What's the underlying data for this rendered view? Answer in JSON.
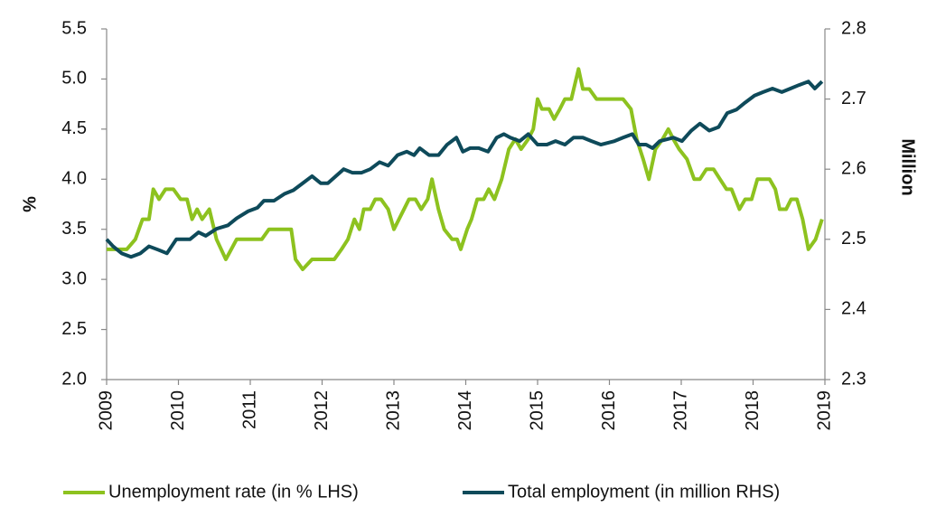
{
  "chart_data": {
    "type": "line",
    "y_label": "%",
    "y2_label": "Million",
    "xlim": [
      2009,
      2019
    ],
    "xticks": [
      2009,
      2010,
      2011,
      2012,
      2013,
      2014,
      2015,
      2016,
      2017,
      2018,
      2019
    ],
    "ylim": [
      2.0,
      5.5
    ],
    "yticks": [
      {
        "value": 2,
        "label": "2.0"
      },
      2.5,
      {
        "value": 3,
        "label": "3.0"
      },
      3.5,
      {
        "value": 4,
        "label": "4.0"
      },
      4.5,
      {
        "value": 5,
        "label": "5.0"
      },
      5.5
    ],
    "y2lim": [
      2.3,
      2.8
    ],
    "y2ticks": [
      2.3,
      2.4,
      2.5,
      2.6,
      2.7,
      2.8
    ],
    "legend": "bottom",
    "series": [
      {
        "name": "Unemployment rate (in % LHS)",
        "color": "#8dc21f",
        "x": [
          2009.0,
          2009.28,
          2009.4,
          2009.5,
          2009.59,
          2009.65,
          2009.73,
          2009.82,
          2009.93,
          2010.03,
          2010.12,
          2010.19,
          2010.26,
          2010.33,
          2010.43,
          2010.53,
          2010.66,
          2010.81,
          2011.16,
          2011.26,
          2011.57,
          2011.63,
          2011.73,
          2011.86,
          2012.17,
          2012.27,
          2012.36,
          2012.45,
          2012.52,
          2012.58,
          2012.67,
          2012.74,
          2012.82,
          2012.92,
          2013.0,
          2013.14,
          2013.21,
          2013.3,
          2013.38,
          2013.47,
          2013.53,
          2013.62,
          2013.7,
          2013.81,
          2013.88,
          2013.93,
          2014.02,
          2014.08,
          2014.16,
          2014.25,
          2014.32,
          2014.4,
          2014.5,
          2014.6,
          2014.69,
          2014.77,
          2014.87,
          2014.94,
          2015.0,
          2015.06,
          2015.16,
          2015.23,
          2015.31,
          2015.38,
          2015.47,
          2015.57,
          2015.63,
          2015.72,
          2015.82,
          2016.19,
          2016.3,
          2016.38,
          2016.47,
          2016.55,
          2016.64,
          2016.74,
          2016.82,
          2016.89,
          2016.97,
          2017.08,
          2017.18,
          2017.26,
          2017.35,
          2017.45,
          2017.54,
          2017.63,
          2017.7,
          2017.81,
          2017.89,
          2017.98,
          2018.06,
          2018.23,
          2018.31,
          2018.37,
          2018.46,
          2018.53,
          2018.61,
          2018.69,
          2018.77,
          2018.87,
          2018.96
        ],
        "values": [
          3.3,
          3.3,
          3.4,
          3.6,
          3.6,
          3.9,
          3.8,
          3.9,
          3.9,
          3.8,
          3.8,
          3.6,
          3.7,
          3.6,
          3.7,
          3.4,
          3.2,
          3.4,
          3.4,
          3.5,
          3.5,
          3.2,
          3.1,
          3.2,
          3.2,
          3.3,
          3.4,
          3.6,
          3.5,
          3.7,
          3.7,
          3.8,
          3.8,
          3.7,
          3.5,
          3.7,
          3.8,
          3.8,
          3.7,
          3.8,
          4.0,
          3.7,
          3.5,
          3.4,
          3.4,
          3.3,
          3.5,
          3.6,
          3.8,
          3.8,
          3.9,
          3.8,
          4.0,
          4.3,
          4.4,
          4.3,
          4.4,
          4.5,
          4.8,
          4.7,
          4.7,
          4.6,
          4.7,
          4.8,
          4.8,
          5.1,
          4.9,
          4.9,
          4.8,
          4.8,
          4.7,
          4.4,
          4.2,
          4.0,
          4.3,
          4.4,
          4.5,
          4.4,
          4.3,
          4.2,
          4.0,
          4.0,
          4.1,
          4.1,
          4.0,
          3.9,
          3.9,
          3.7,
          3.8,
          3.8,
          4.0,
          4.0,
          3.9,
          3.7,
          3.7,
          3.8,
          3.8,
          3.6,
          3.3,
          3.4,
          3.6
        ]
      },
      {
        "name": "Total employment (in million RHS)",
        "color": "#0e4a5a",
        "axis": "y2",
        "x": [
          2009.0,
          2009.09,
          2009.21,
          2009.34,
          2009.47,
          2009.59,
          2009.72,
          2009.84,
          2009.97,
          2010.16,
          2010.28,
          2010.38,
          2010.53,
          2010.69,
          2010.81,
          2010.97,
          2011.1,
          2011.19,
          2011.33,
          2011.48,
          2011.6,
          2011.73,
          2011.86,
          2011.98,
          2012.08,
          2012.19,
          2012.3,
          2012.42,
          2012.55,
          2012.67,
          2012.8,
          2012.92,
          2013.05,
          2013.18,
          2013.28,
          2013.36,
          2013.49,
          2013.62,
          2013.74,
          2013.87,
          2013.96,
          2014.06,
          2014.18,
          2014.31,
          2014.43,
          2014.53,
          2014.62,
          2014.75,
          2014.87,
          2015.0,
          2015.13,
          2015.25,
          2015.38,
          2015.5,
          2015.63,
          2015.75,
          2015.88,
          2016.07,
          2016.19,
          2016.32,
          2016.41,
          2016.51,
          2016.6,
          2016.7,
          2016.89,
          2017.01,
          2017.14,
          2017.26,
          2017.39,
          2017.52,
          2017.64,
          2017.77,
          2017.89,
          2018.02,
          2018.14,
          2018.27,
          2018.4,
          2018.52,
          2018.64,
          2018.77,
          2018.86,
          2018.96
        ],
        "values": [
          2.5,
          2.49,
          2.48,
          2.475,
          2.48,
          2.49,
          2.485,
          2.48,
          2.5,
          2.5,
          2.51,
          2.505,
          2.515,
          2.52,
          2.53,
          2.54,
          2.545,
          2.555,
          2.555,
          2.565,
          2.57,
          2.58,
          2.59,
          2.58,
          2.58,
          2.59,
          2.6,
          2.595,
          2.595,
          2.6,
          2.61,
          2.605,
          2.62,
          2.625,
          2.62,
          2.63,
          2.62,
          2.62,
          2.635,
          2.645,
          2.625,
          2.63,
          2.63,
          2.625,
          2.645,
          2.65,
          2.645,
          2.64,
          2.65,
          2.635,
          2.635,
          2.64,
          2.635,
          2.645,
          2.645,
          2.64,
          2.635,
          2.64,
          2.645,
          2.65,
          2.635,
          2.635,
          2.63,
          2.64,
          2.645,
          2.64,
          2.655,
          2.665,
          2.655,
          2.66,
          2.68,
          2.685,
          2.695,
          2.705,
          2.71,
          2.715,
          2.71,
          2.715,
          2.72,
          2.725,
          2.715,
          2.725
        ]
      }
    ]
  }
}
